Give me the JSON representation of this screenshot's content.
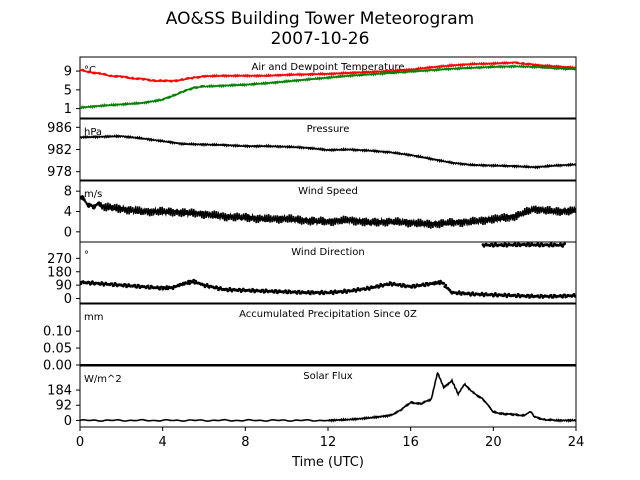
{
  "title": "AO&SS Building Tower Meteorogram",
  "subtitle": "2007-10-26",
  "xlabel": "Time (UTC)",
  "xticks": [
    0,
    4,
    8,
    12,
    16,
    20,
    24
  ],
  "xlim": [
    0,
    24
  ],
  "chart_data": [
    {
      "type": "line",
      "title": "Air and Dewpoint Temperature",
      "unit": "°C",
      "ylim": [
        -1,
        12
      ],
      "yticks": [
        1,
        5,
        9
      ],
      "series": [
        {
          "color": "#ff0000",
          "points": [
            [
              0,
              9.2
            ],
            [
              0.5,
              8.8
            ],
            [
              1,
              8.4
            ],
            [
              1.5,
              8.0
            ],
            [
              2,
              7.8
            ],
            [
              2.5,
              7.5
            ],
            [
              3,
              7.3
            ],
            [
              3.5,
              7.0
            ],
            [
              4,
              6.9
            ],
            [
              4.5,
              6.9
            ],
            [
              5,
              7.2
            ],
            [
              5.5,
              7.6
            ],
            [
              6,
              7.9
            ],
            [
              7,
              8.0
            ],
            [
              8,
              8.0
            ],
            [
              9,
              8.0
            ],
            [
              10,
              8.2
            ],
            [
              11,
              8.3
            ],
            [
              12,
              8.4
            ],
            [
              13,
              8.6
            ],
            [
              14,
              8.8
            ],
            [
              15,
              9.0
            ],
            [
              16,
              9.3
            ],
            [
              17,
              9.8
            ],
            [
              18,
              10.2
            ],
            [
              19,
              10.5
            ],
            [
              20,
              10.6
            ],
            [
              21,
              10.8
            ],
            [
              21.5,
              10.6
            ],
            [
              22,
              10.3
            ],
            [
              23,
              10.0
            ],
            [
              24,
              9.7
            ]
          ]
        },
        {
          "color": "#008000",
          "points": [
            [
              0,
              1.2
            ],
            [
              1,
              1.6
            ],
            [
              2,
              1.9
            ],
            [
              3,
              2.2
            ],
            [
              4,
              2.9
            ],
            [
              4.5,
              3.8
            ],
            [
              5,
              4.6
            ],
            [
              5.5,
              5.5
            ],
            [
              6,
              5.7
            ],
            [
              7,
              5.9
            ],
            [
              8,
              6.1
            ],
            [
              9,
              6.4
            ],
            [
              10,
              6.8
            ],
            [
              11,
              7.2
            ],
            [
              12,
              7.6
            ],
            [
              13,
              8.0
            ],
            [
              14,
              8.3
            ],
            [
              15,
              8.6
            ],
            [
              16,
              8.9
            ],
            [
              17,
              9.2
            ],
            [
              18,
              9.5
            ],
            [
              19,
              9.7
            ],
            [
              20,
              9.9
            ],
            [
              21,
              10.0
            ],
            [
              22,
              9.9
            ],
            [
              23,
              9.6
            ],
            [
              24,
              9.4
            ]
          ]
        }
      ]
    },
    {
      "type": "line",
      "title": "Pressure",
      "unit": "hPa",
      "ylim": [
        976.5,
        987.5
      ],
      "yticks": [
        978,
        982,
        986
      ],
      "series": [
        {
          "color": "#000000",
          "points": [
            [
              0,
              984.2
            ],
            [
              1,
              984.3
            ],
            [
              2,
              984.4
            ],
            [
              3,
              984.0
            ],
            [
              4,
              983.5
            ],
            [
              5,
              983.0
            ],
            [
              6,
              982.9
            ],
            [
              7,
              982.8
            ],
            [
              8,
              982.6
            ],
            [
              9,
              982.6
            ],
            [
              10,
              982.5
            ],
            [
              11,
              982.3
            ],
            [
              12,
              981.9
            ],
            [
              13,
              982.0
            ],
            [
              14,
              981.8
            ],
            [
              15,
              981.5
            ],
            [
              16,
              981.0
            ],
            [
              17,
              980.3
            ],
            [
              18,
              979.6
            ],
            [
              19,
              979.2
            ],
            [
              20,
              979.1
            ],
            [
              21,
              979.0
            ],
            [
              22,
              978.8
            ],
            [
              23,
              979.1
            ],
            [
              24,
              979.3
            ]
          ]
        }
      ]
    },
    {
      "type": "line",
      "title": "Wind Speed",
      "unit": "m/s",
      "ylim": [
        -2,
        10
      ],
      "yticks": [
        0,
        4,
        8
      ],
      "series": [
        {
          "color": "#000000",
          "points": [
            [
              0,
              6.5
            ],
            [
              0.5,
              5.5
            ],
            [
              1,
              5.0
            ],
            [
              2,
              4.5
            ],
            [
              3,
              4.0
            ],
            [
              4,
              4.0
            ],
            [
              5,
              3.8
            ],
            [
              6,
              3.5
            ],
            [
              7,
              3.0
            ],
            [
              8,
              2.8
            ],
            [
              9,
              2.5
            ],
            [
              10,
              2.6
            ],
            [
              11,
              2.2
            ],
            [
              12,
              2.0
            ],
            [
              13,
              2.3
            ],
            [
              14,
              1.8
            ],
            [
              15,
              2.0
            ],
            [
              16,
              1.8
            ],
            [
              17,
              1.5
            ],
            [
              18,
              1.8
            ],
            [
              19,
              2.0
            ],
            [
              20,
              2.5
            ],
            [
              21,
              3.0
            ],
            [
              22,
              4.5
            ],
            [
              23,
              4.0
            ],
            [
              24,
              4.2
            ]
          ]
        }
      ]
    },
    {
      "type": "scatter",
      "title": "Wind Direction",
      "unit": "°",
      "ylim": [
        -30,
        380
      ],
      "yticks": [
        0,
        90,
        180,
        270
      ],
      "series": [
        {
          "color": "#000000",
          "points": [
            [
              0,
              110
            ],
            [
              1,
              100
            ],
            [
              2,
              90
            ],
            [
              3,
              80
            ],
            [
              4,
              70
            ],
            [
              4.5,
              75
            ],
            [
              5,
              100
            ],
            [
              5.5,
              115
            ],
            [
              6,
              90
            ],
            [
              7,
              60
            ],
            [
              8,
              55
            ],
            [
              9,
              50
            ],
            [
              10,
              45
            ],
            [
              11,
              40
            ],
            [
              12,
              40
            ],
            [
              13,
              50
            ],
            [
              14,
              70
            ],
            [
              15,
              100
            ],
            [
              16,
              80
            ],
            [
              17,
              100
            ],
            [
              17.5,
              110
            ],
            [
              18,
              40
            ],
            [
              19,
              30
            ],
            [
              20,
              25
            ],
            [
              21,
              20
            ],
            [
              22,
              15
            ],
            [
              23,
              15
            ],
            [
              24,
              20
            ]
          ]
        },
        {
          "color": "#000000",
          "points": [
            [
              19.5,
              360
            ],
            [
              20.5,
              360
            ],
            [
              21.5,
              362
            ],
            [
              22.5,
              360
            ],
            [
              23.5,
              360
            ]
          ]
        }
      ]
    },
    {
      "type": "line",
      "title": "Accumulated Precipitation Since 0Z",
      "unit": "mm",
      "ylim": [
        0,
        0.18
      ],
      "yticks": [
        0.0,
        0.05,
        0.1
      ],
      "ytick_labels": [
        "0.00",
        "0.05",
        "0.10"
      ],
      "series": [
        {
          "color": "#000000",
          "points": [
            [
              0,
              0
            ],
            [
              24,
              0
            ]
          ]
        }
      ]
    },
    {
      "type": "line",
      "title": "Solar Flux",
      "unit": "W/m^2",
      "ylim": [
        -40,
        330
      ],
      "yticks": [
        0,
        92,
        184
      ],
      "series": [
        {
          "color": "#000000",
          "points": [
            [
              0,
              0
            ],
            [
              12,
              0
            ],
            [
              13,
              5
            ],
            [
              14,
              15
            ],
            [
              15,
              30
            ],
            [
              15.5,
              60
            ],
            [
              16,
              110
            ],
            [
              16.5,
              100
            ],
            [
              17,
              130
            ],
            [
              17.3,
              290
            ],
            [
              17.6,
              200
            ],
            [
              18,
              240
            ],
            [
              18.3,
              160
            ],
            [
              18.6,
              220
            ],
            [
              19,
              170
            ],
            [
              19.5,
              130
            ],
            [
              20,
              50
            ],
            [
              20.5,
              40
            ],
            [
              21,
              35
            ],
            [
              21.5,
              30
            ],
            [
              21.8,
              55
            ],
            [
              22,
              20
            ],
            [
              22.5,
              5
            ],
            [
              23,
              0
            ],
            [
              24,
              0
            ]
          ]
        }
      ]
    }
  ]
}
